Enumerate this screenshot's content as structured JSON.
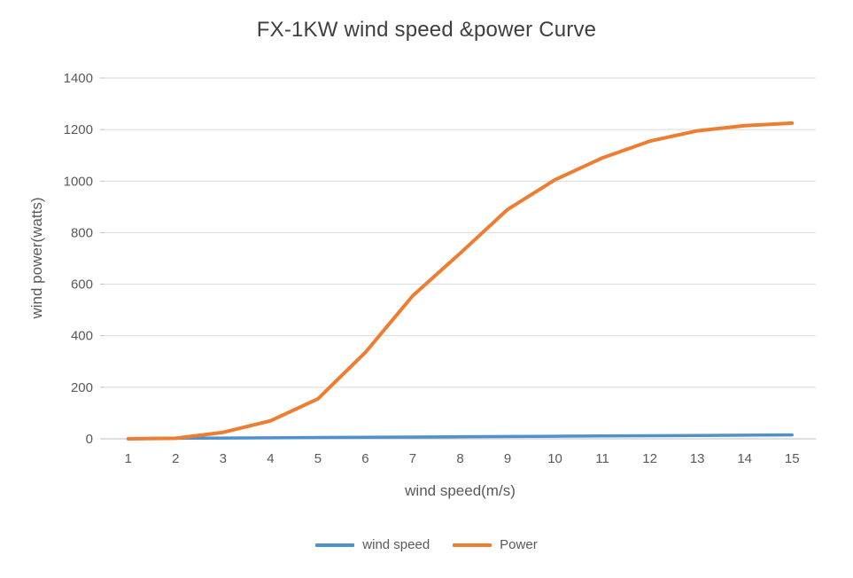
{
  "chart_data": {
    "type": "line",
    "title": "FX-1KW wind speed &power Curve",
    "xlabel": "wind speed(m/s)",
    "ylabel": "wind power(watts)",
    "x": [
      1,
      2,
      3,
      4,
      5,
      6,
      7,
      8,
      9,
      10,
      11,
      12,
      13,
      14,
      15
    ],
    "series": [
      {
        "name": "wind speed",
        "color": "#4f91cd",
        "values": [
          1,
          2,
          3,
          4,
          5,
          6,
          7,
          8,
          9,
          10,
          11,
          12,
          13,
          14,
          15
        ]
      },
      {
        "name": "Power",
        "color": "#ed7d31",
        "values": [
          0,
          2,
          25,
          70,
          155,
          335,
          555,
          720,
          890,
          1005,
          1090,
          1155,
          1195,
          1215,
          1225
        ]
      }
    ],
    "ylim": [
      0,
      1400
    ],
    "ytick_step": 200,
    "yticks": [
      0,
      200,
      400,
      600,
      800,
      1000,
      1200,
      1400
    ],
    "grid": true,
    "legend_position": "bottom",
    "colors": {
      "grid": "#d9d9d9",
      "axis": "#bfbfbf",
      "tick_text": "#595959",
      "title_text": "#3f3f3f"
    }
  }
}
